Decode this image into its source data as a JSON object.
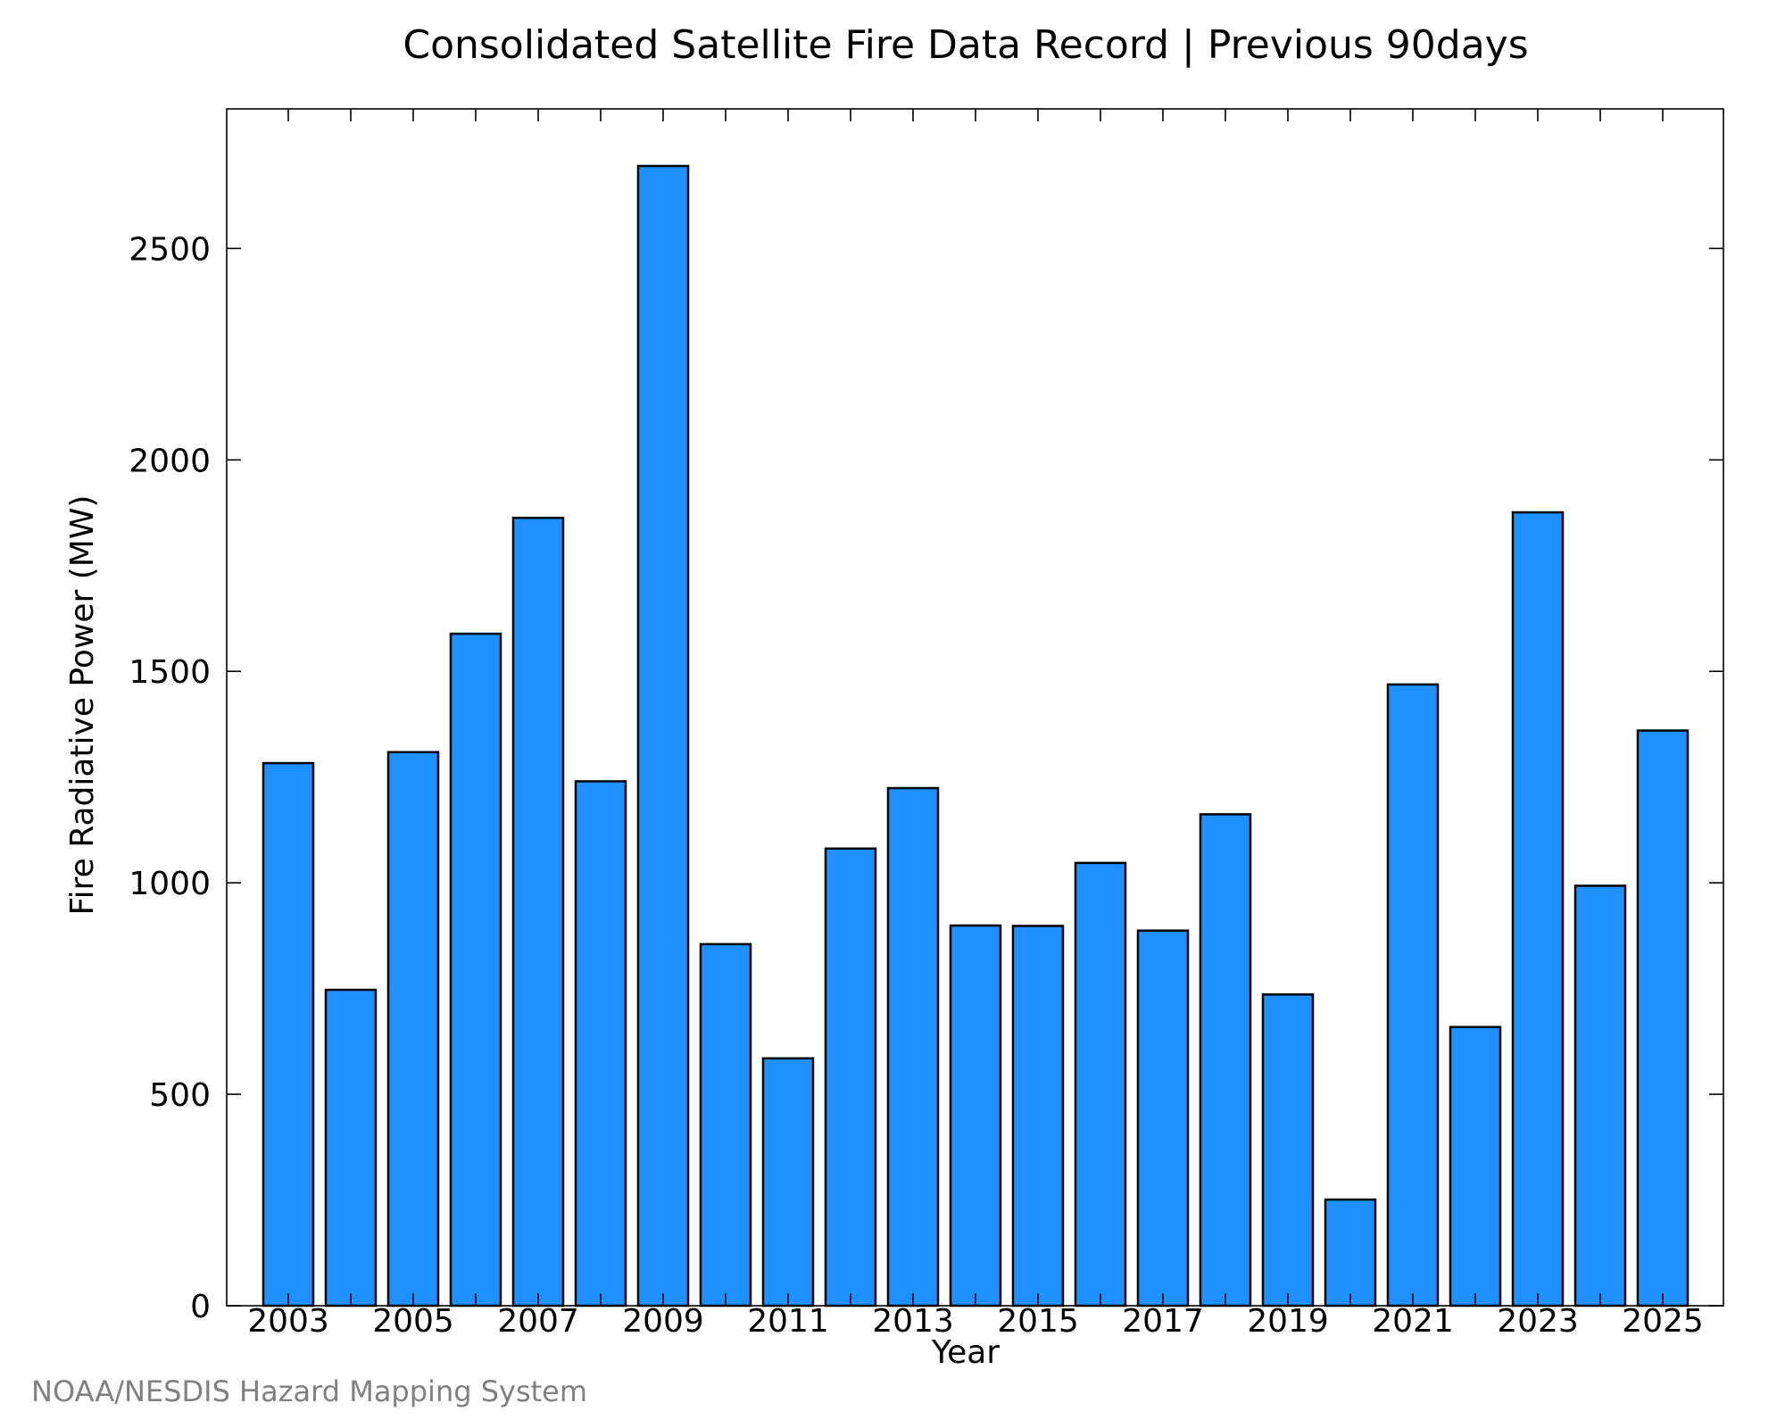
{
  "chart_data": {
    "type": "bar",
    "title": "Consolidated Satellite Fire Data Record | Previous 90days",
    "xlabel": "Year",
    "ylabel": "Fire Radiative Power (MW)",
    "categories": [
      "2003",
      "2004",
      "2005",
      "2006",
      "2007",
      "2008",
      "2009",
      "2010",
      "2011",
      "2012",
      "2013",
      "2014",
      "2015",
      "2016",
      "2017",
      "2018",
      "2019",
      "2020",
      "2021",
      "2022",
      "2023",
      "2024",
      "2025"
    ],
    "values": [
      1283,
      747,
      1309,
      1589,
      1863,
      1240,
      2695,
      855,
      585,
      1081,
      1224,
      899,
      898,
      1047,
      887,
      1162,
      736,
      251,
      1469,
      659,
      1876,
      993,
      1360
    ],
    "x_tick_labels": [
      "2003",
      "2005",
      "2007",
      "2009",
      "2011",
      "2013",
      "2015",
      "2017",
      "2019",
      "2021",
      "2023",
      "2025"
    ],
    "y_ticks": [
      0,
      500,
      1000,
      1500,
      2000,
      2500
    ],
    "ylim": [
      0,
      2830
    ],
    "grid": false,
    "bar_color": "#1E90FF",
    "edge_color": "#000000"
  },
  "credit": "NOAA/NESDIS Hazard Mapping System"
}
